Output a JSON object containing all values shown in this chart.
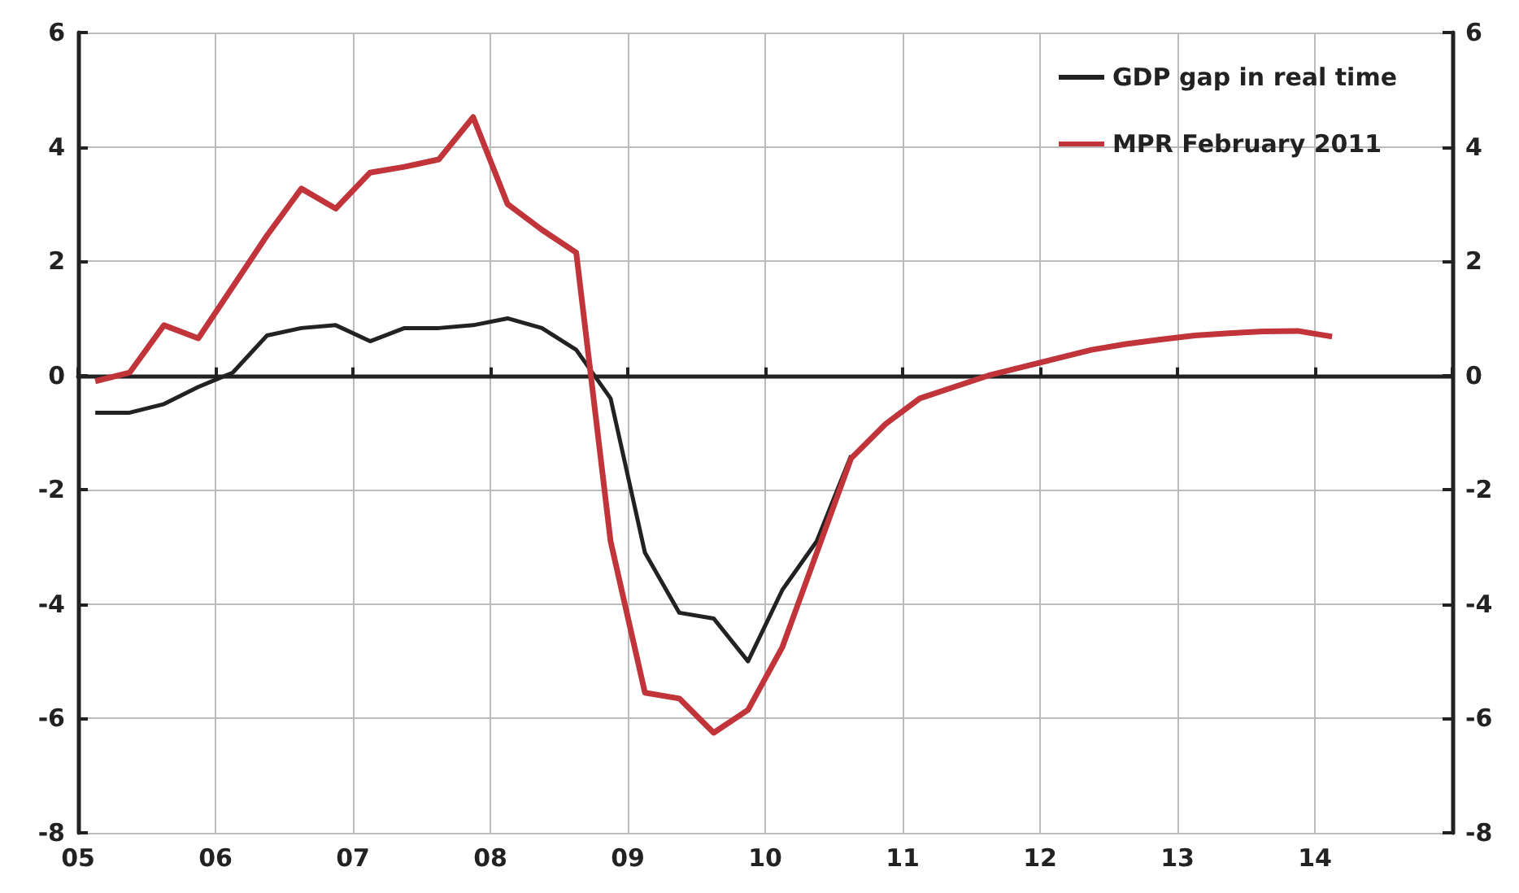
{
  "chart_data": {
    "type": "line",
    "series": [
      {
        "name": "GDP gap in real time",
        "color": "#222222",
        "x": [
          2005.125,
          2005.375,
          2005.625,
          2005.875,
          2006.125,
          2006.375,
          2006.625,
          2006.875,
          2007.125,
          2007.375,
          2007.625,
          2007.875,
          2008.125,
          2008.375,
          2008.625,
          2008.875,
          2009.125,
          2009.375,
          2009.625,
          2009.875,
          2010.125,
          2010.375,
          2010.625
        ],
        "values": [
          -0.65,
          -0.65,
          -0.5,
          -0.2,
          0.05,
          0.7,
          0.83,
          0.88,
          0.6,
          0.83,
          0.83,
          0.88,
          1.0,
          0.83,
          0.45,
          -0.4,
          -3.1,
          -4.15,
          -4.25,
          -5.0,
          -3.75,
          -2.9,
          -1.4
        ]
      },
      {
        "name": "MPR February 2011",
        "color": "#c0343a",
        "x": [
          2005.125,
          2005.375,
          2005.625,
          2005.875,
          2006.125,
          2006.375,
          2006.625,
          2006.875,
          2007.125,
          2007.375,
          2007.625,
          2007.875,
          2008.125,
          2008.375,
          2008.625,
          2008.875,
          2009.125,
          2009.375,
          2009.625,
          2009.875,
          2010.125,
          2010.375,
          2010.625,
          2010.875,
          2011.125,
          2011.375,
          2011.625,
          2011.875,
          2012.125,
          2012.375,
          2012.625,
          2012.875,
          2013.125,
          2013.375,
          2013.625,
          2013.875,
          2014.125
        ],
        "values": [
          -0.1,
          0.05,
          0.88,
          0.65,
          1.55,
          2.45,
          3.27,
          2.92,
          3.55,
          3.65,
          3.78,
          4.52,
          3.0,
          2.55,
          2.15,
          -2.9,
          -5.55,
          -5.65,
          -6.25,
          -5.85,
          -4.75,
          -3.1,
          -1.45,
          -0.85,
          -0.4,
          -0.2,
          0.0,
          0.15,
          0.3,
          0.45,
          0.55,
          0.63,
          0.7,
          0.74,
          0.77,
          0.78,
          0.68
        ]
      }
    ],
    "xlim": [
      2005,
      2015
    ],
    "xticks": [
      {
        "value": 2005,
        "label": "05"
      },
      {
        "value": 2006,
        "label": "06"
      },
      {
        "value": 2007,
        "label": "07"
      },
      {
        "value": 2008,
        "label": "08"
      },
      {
        "value": 2009,
        "label": "09"
      },
      {
        "value": 2010,
        "label": "10"
      },
      {
        "value": 2011,
        "label": "11"
      },
      {
        "value": 2012,
        "label": "12"
      },
      {
        "value": 2013,
        "label": "13"
      },
      {
        "value": 2014,
        "label": "14"
      },
      {
        "value": 2015,
        "label": null
      }
    ],
    "ylim": [
      -8,
      6
    ],
    "yticks": [
      -8,
      -6,
      -4,
      -2,
      0,
      2,
      4,
      6
    ],
    "y2lim": [
      -8,
      6
    ],
    "y2ticks": [
      -8,
      -6,
      -4,
      -2,
      0,
      2,
      4,
      6
    ],
    "grid": true,
    "legend": "top right"
  }
}
